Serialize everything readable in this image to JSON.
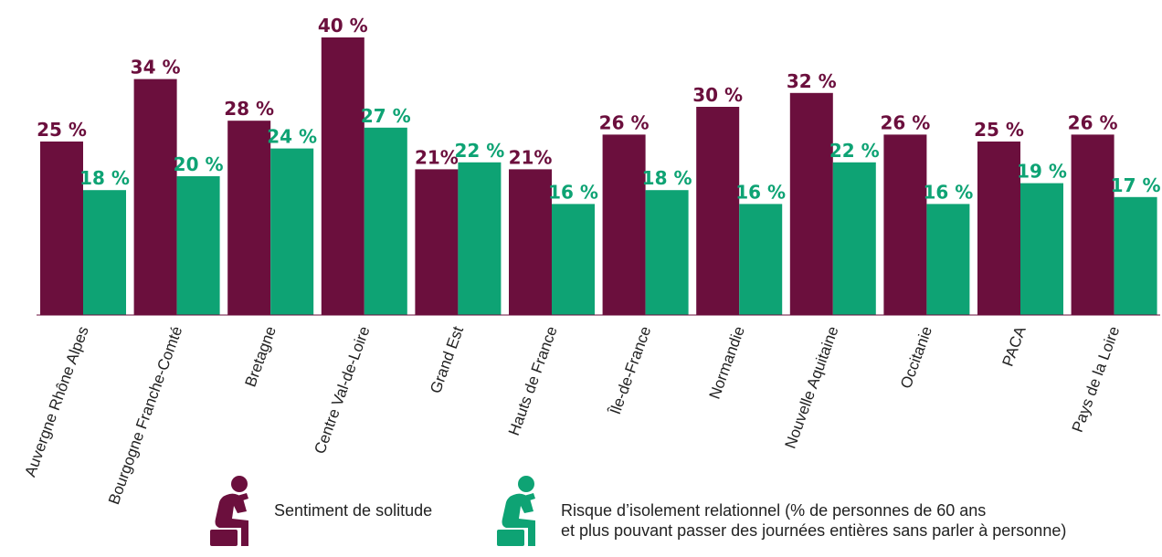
{
  "colors": {
    "solitude": "#6b0f3d",
    "isolement": "#0ea374"
  },
  "chart_data": {
    "type": "bar",
    "categories": [
      "Auvergne Rhône Alpes",
      "Bourgogne Franche-Comté",
      "Bretagne",
      "Centre Val-de-Loire",
      "Grand Est",
      "Hauts de France",
      "Île-de-France",
      "Normandie",
      "Nouvelle Aquitaine",
      "Occitanie",
      "PACA",
      "Pays de la Loire"
    ],
    "series": [
      {
        "name": "Sentiment de solitude",
        "values": [
          25,
          34,
          28,
          40,
          21,
          21,
          26,
          30,
          32,
          26,
          25,
          26
        ],
        "labels": [
          "25 %",
          "34 %",
          "28 %",
          "40 %",
          "21%",
          "21%",
          "26 %",
          "30 %",
          "32 %",
          "26 %",
          "25 %",
          "26 %"
        ]
      },
      {
        "name": "Risque d’isolement relationnel (% de personnes de 60 ans et plus pouvant passer des journées entières sans parler à personne)",
        "values": [
          18,
          20,
          24,
          27,
          22,
          16,
          18,
          16,
          22,
          16,
          19,
          17
        ],
        "labels": [
          "18 %",
          "20 %",
          "24 %",
          "27 %",
          "22 %",
          "16 %",
          "18 %",
          "16 %",
          "22 %",
          "16 %",
          "19 %",
          "17 %"
        ]
      }
    ],
    "ylim": [
      0,
      40
    ],
    "grid": false
  },
  "legend": {
    "solitude_label": "Sentiment de solitude",
    "isolement_line1": "Risque d’isolement relationnel (% de personnes de 60 ans",
    "isolement_line2": "et plus pouvant passer des journées entières sans parler à personne)",
    "solitude_icon": "person-head-in-hands-icon",
    "isolement_icon": "person-head-in-hands-icon"
  }
}
